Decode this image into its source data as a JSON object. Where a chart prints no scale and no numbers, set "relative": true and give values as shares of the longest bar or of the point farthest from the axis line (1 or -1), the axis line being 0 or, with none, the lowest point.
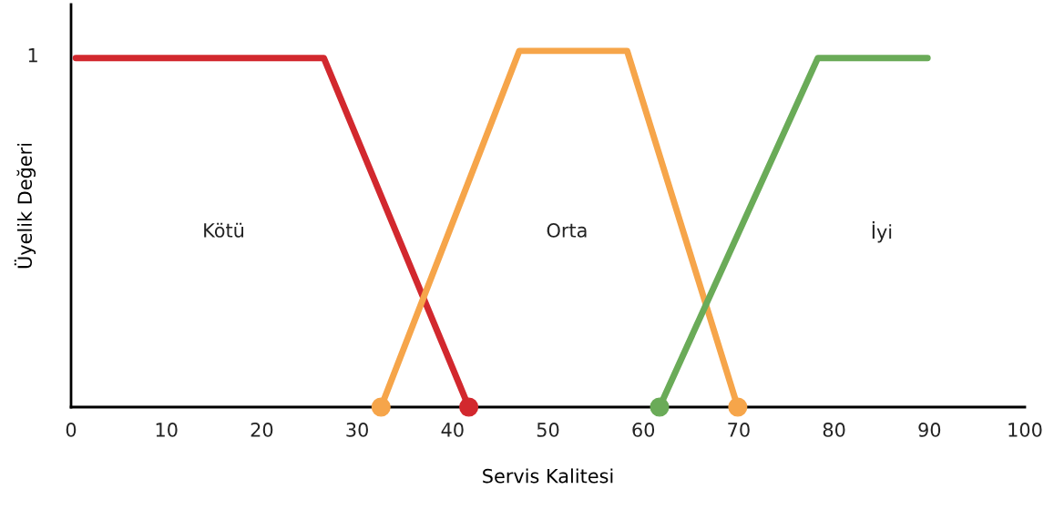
{
  "chart_data": {
    "type": "line",
    "xlabel": "Servis Kalitesi",
    "ylabel": "Üyelik Değeri",
    "xlim": [
      0,
      100
    ],
    "xticks": [
      0,
      10,
      20,
      30,
      40,
      50,
      60,
      70,
      80,
      90,
      100
    ],
    "relative": true,
    "grid": false,
    "legend": false,
    "series": [
      {
        "color": "#d2282e",
        "x": [
          0.5,
          26.5,
          41.7
        ],
        "values": [
          0.98,
          0.98,
          0
        ]
      },
      {
        "color": "#f6a54a",
        "x": [
          32.5,
          47,
          58.3,
          69.9
        ],
        "values": [
          0,
          1,
          1,
          0
        ]
      },
      {
        "color": "#6aab58",
        "x": [
          61.7,
          78.3,
          89.8
        ],
        "values": [
          0,
          0.98,
          0.98
        ]
      },
      {
        "type": "scatter",
        "marker": "circle",
        "color": "#d2282e",
        "x": [
          41.7
        ],
        "values": [
          0
        ]
      },
      {
        "type": "scatter",
        "marker": "circle",
        "color": "#f6a54a",
        "x": [
          32.5,
          69.9
        ],
        "values": [
          0,
          0
        ]
      },
      {
        "type": "scatter",
        "marker": "circle",
        "color": "#6aab58",
        "x": [
          61.7
        ],
        "values": [
          0
        ]
      }
    ],
    "annotations": [
      "1",
      "Kötü",
      "Orta",
      "İyi"
    ]
  }
}
